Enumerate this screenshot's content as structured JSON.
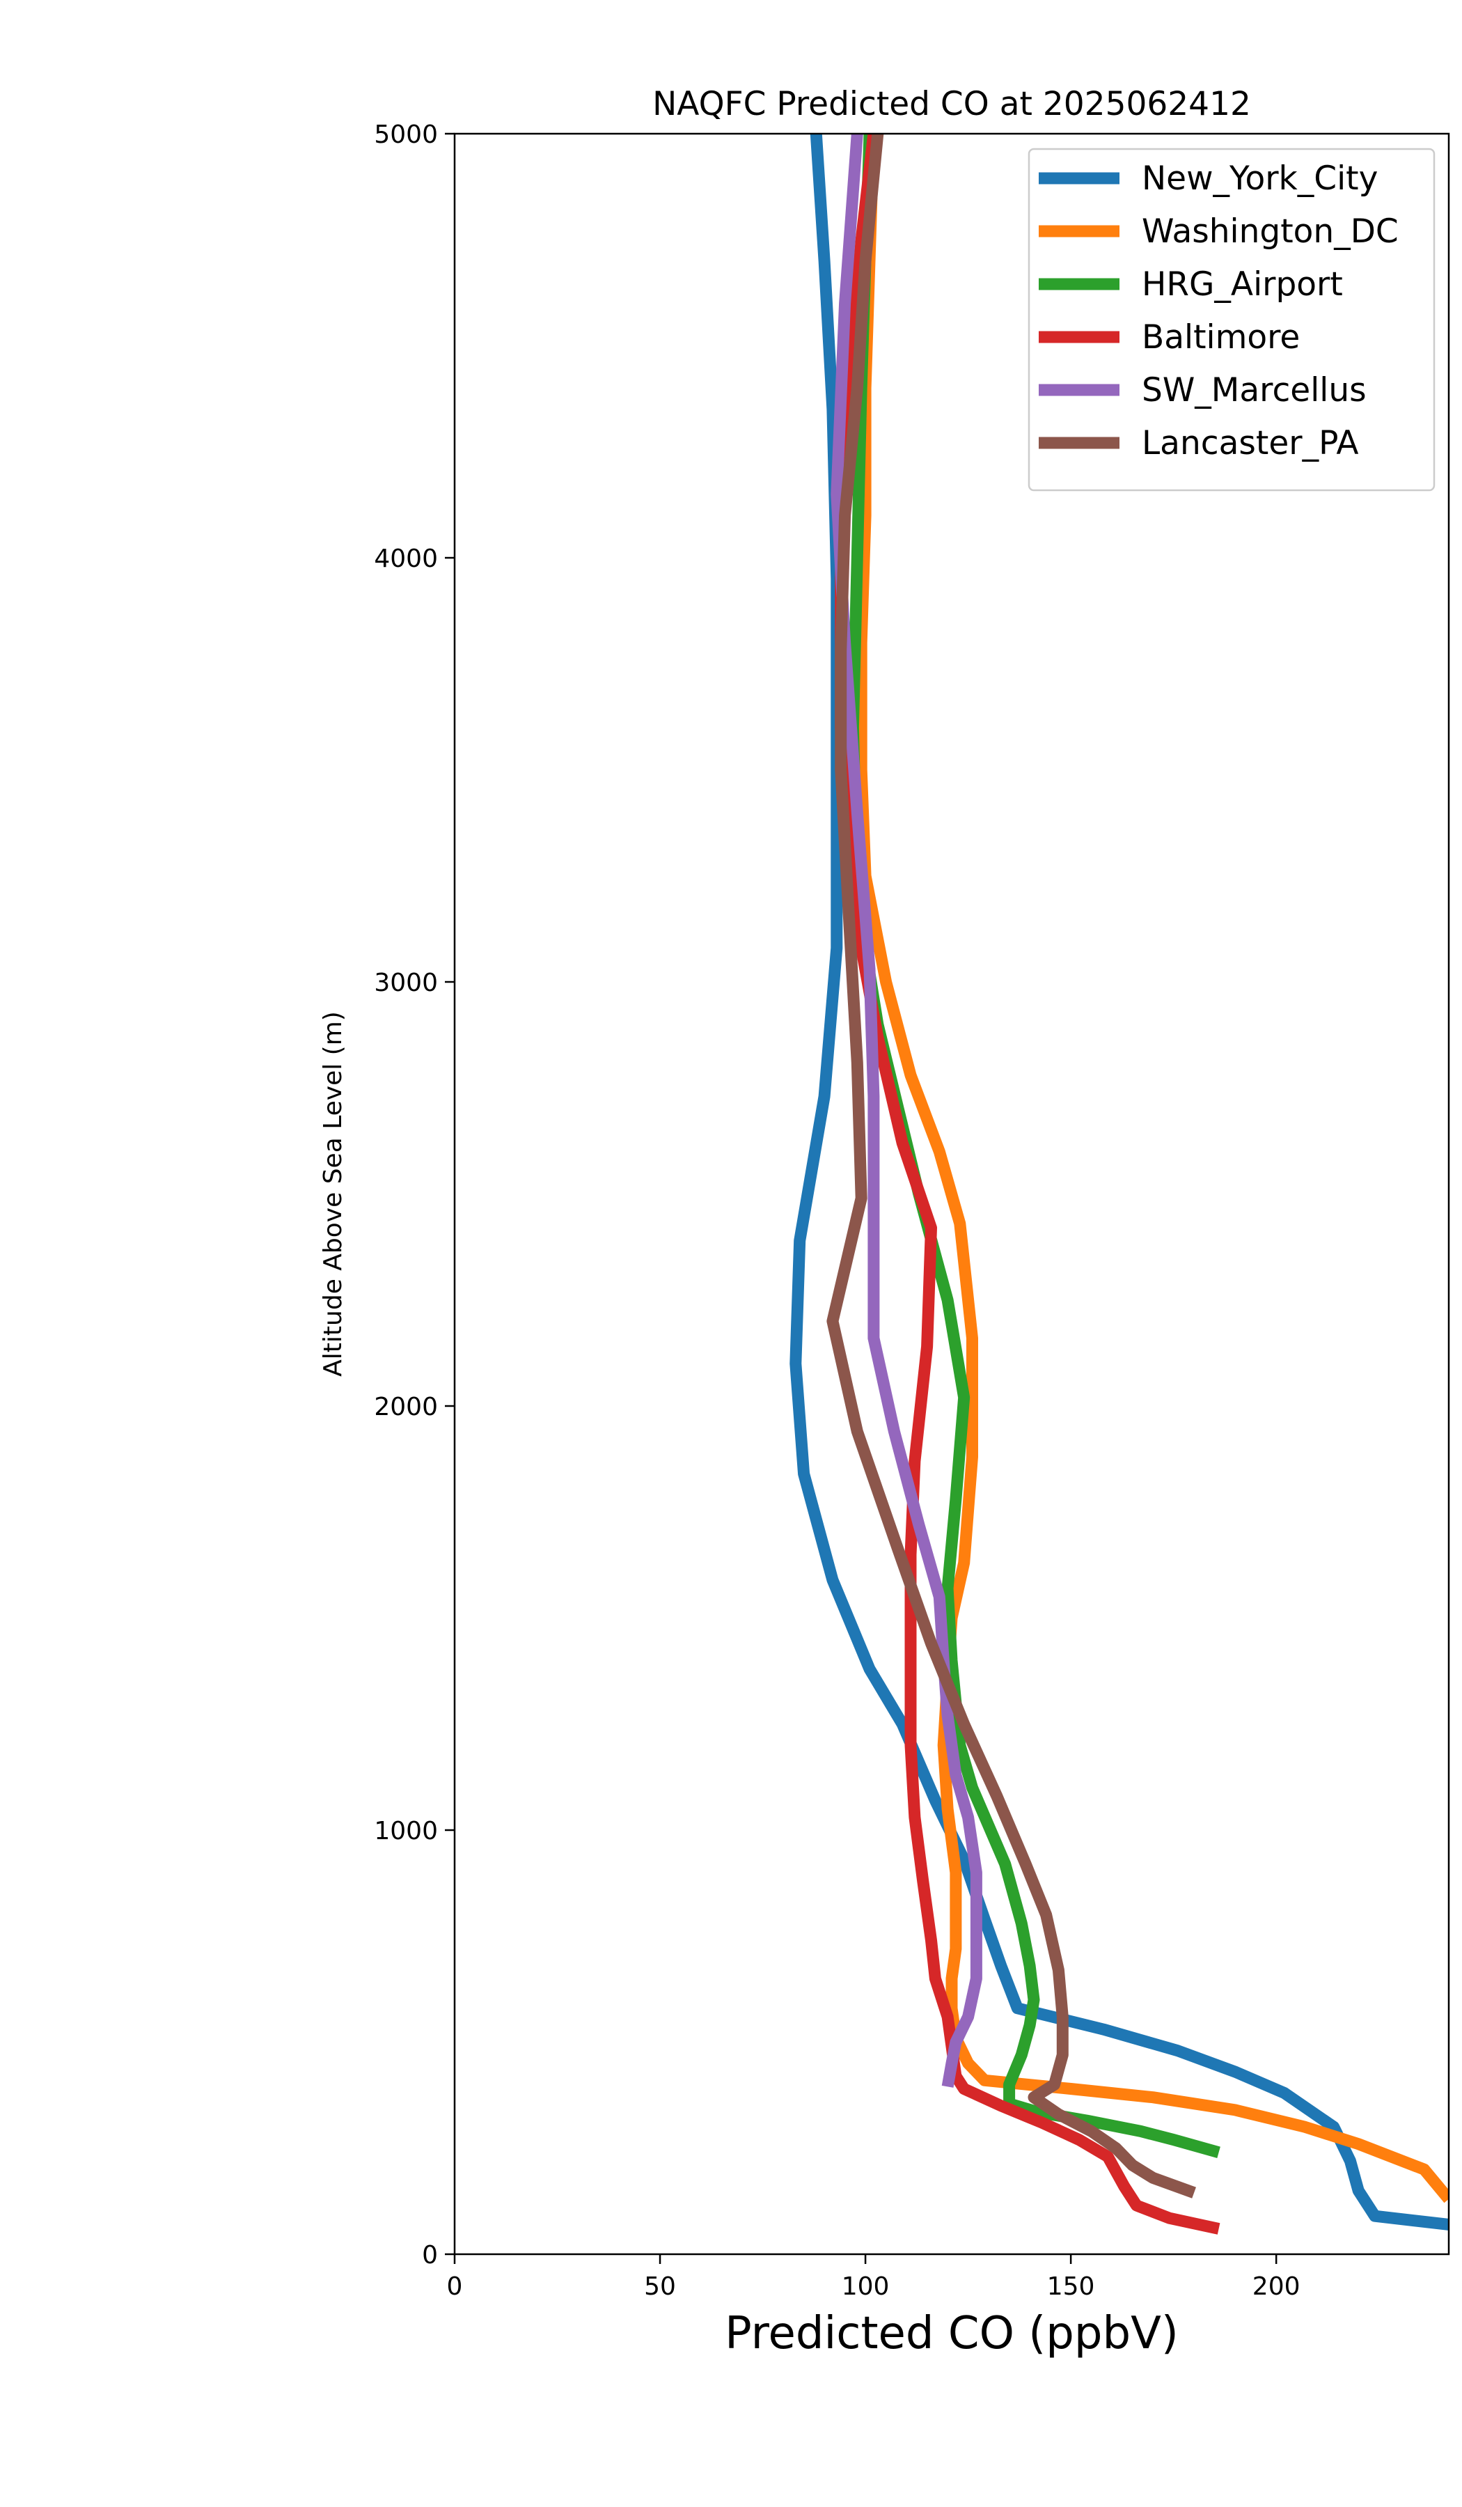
{
  "chart_data": {
    "type": "line",
    "title": "NAQFC Predicted CO at 2025062412",
    "xlabel": "Predicted CO (ppbV)",
    "ylabel": "Altitude Above Sea Level (m)",
    "xlim": [
      0,
      242
    ],
    "ylim": [
      0,
      5000
    ],
    "x_ticks": [
      0,
      50,
      100,
      150,
      200
    ],
    "y_ticks": [
      0,
      1000,
      2000,
      3000,
      4000,
      5000
    ],
    "legend_position": "top-right",
    "series": [
      {
        "name": "New_York_City",
        "color": "#1f77b4",
        "points": [
          [
            242,
            70
          ],
          [
            224,
            90
          ],
          [
            220,
            150
          ],
          [
            218,
            220
          ],
          [
            214,
            300
          ],
          [
            202,
            380
          ],
          [
            190,
            430
          ],
          [
            176,
            480
          ],
          [
            158,
            530
          ],
          [
            137,
            580
          ],
          [
            133,
            680
          ],
          [
            129,
            790
          ],
          [
            124,
            930
          ],
          [
            117,
            1070
          ],
          [
            109,
            1250
          ],
          [
            101,
            1380
          ],
          [
            92,
            1590
          ],
          [
            85,
            1840
          ],
          [
            83,
            2100
          ],
          [
            84,
            2390
          ],
          [
            90,
            2730
          ],
          [
            93,
            3080
          ],
          [
            93,
            3500
          ],
          [
            93,
            3950
          ],
          [
            92,
            4350
          ],
          [
            90,
            4700
          ],
          [
            88,
            5000
          ]
        ]
      },
      {
        "name": "Washington_DC",
        "color": "#ff7f0e",
        "points": [
          [
            242,
            130
          ],
          [
            236,
            200
          ],
          [
            220,
            260
          ],
          [
            207,
            300
          ],
          [
            190,
            340
          ],
          [
            170,
            370
          ],
          [
            150,
            390
          ],
          [
            129,
            410
          ],
          [
            125,
            450
          ],
          [
            122,
            510
          ],
          [
            121,
            580
          ],
          [
            121,
            650
          ],
          [
            122,
            720
          ],
          [
            122,
            800
          ],
          [
            122,
            900
          ],
          [
            120,
            1050
          ],
          [
            119,
            1200
          ],
          [
            120,
            1360
          ],
          [
            121,
            1500
          ],
          [
            124,
            1630
          ],
          [
            126,
            1880
          ],
          [
            126,
            2160
          ],
          [
            123,
            2430
          ],
          [
            118,
            2600
          ],
          [
            111,
            2780
          ],
          [
            105,
            3000
          ],
          [
            100,
            3250
          ],
          [
            99,
            3500
          ],
          [
            99,
            3800
          ],
          [
            100,
            4100
          ],
          [
            100,
            4400
          ],
          [
            101,
            4700
          ],
          [
            102,
            5000
          ]
        ]
      },
      {
        "name": "HRG_Airport",
        "color": "#2ca02c",
        "points": [
          [
            186,
            240
          ],
          [
            175,
            270
          ],
          [
            167,
            290
          ],
          [
            154,
            315
          ],
          [
            142,
            335
          ],
          [
            135,
            355
          ],
          [
            135,
            400
          ],
          [
            138,
            470
          ],
          [
            140,
            540
          ],
          [
            141,
            600
          ],
          [
            140,
            680
          ],
          [
            138,
            780
          ],
          [
            134,
            920
          ],
          [
            126,
            1100
          ],
          [
            123,
            1200
          ],
          [
            121,
            1400
          ],
          [
            120,
            1570
          ],
          [
            122,
            1780
          ],
          [
            124,
            2020
          ],
          [
            120,
            2250
          ],
          [
            113,
            2500
          ],
          [
            108,
            2700
          ],
          [
            103,
            2900
          ],
          [
            98,
            3200
          ],
          [
            97,
            3600
          ],
          [
            98,
            4000
          ],
          [
            99,
            4400
          ],
          [
            100,
            4700
          ],
          [
            101,
            5000
          ]
        ]
      },
      {
        "name": "Baltimore",
        "color": "#d62728",
        "points": [
          [
            186,
            60
          ],
          [
            174,
            85
          ],
          [
            166,
            115
          ],
          [
            163,
            160
          ],
          [
            159,
            230
          ],
          [
            152,
            270
          ],
          [
            143,
            310
          ],
          [
            133,
            350
          ],
          [
            124,
            390
          ],
          [
            122,
            420
          ],
          [
            121,
            490
          ],
          [
            120,
            560
          ],
          [
            117,
            650
          ],
          [
            116,
            740
          ],
          [
            114,
            880
          ],
          [
            112,
            1030
          ],
          [
            111,
            1200
          ],
          [
            111,
            1420
          ],
          [
            111,
            1650
          ],
          [
            112,
            1870
          ],
          [
            115,
            2140
          ],
          [
            116,
            2420
          ],
          [
            109,
            2620
          ],
          [
            103,
            2870
          ],
          [
            99,
            3080
          ],
          [
            96,
            3300
          ],
          [
            94,
            3600
          ],
          [
            94,
            4000
          ],
          [
            96,
            4400
          ],
          [
            99,
            4750
          ],
          [
            102,
            5000
          ]
        ]
      },
      {
        "name": "SW_Marcellus",
        "color": "#9467bd",
        "points": [
          [
            120,
            395
          ],
          [
            121,
            450
          ],
          [
            122,
            500
          ],
          [
            125,
            560
          ],
          [
            127,
            650
          ],
          [
            127,
            770
          ],
          [
            127,
            900
          ],
          [
            125,
            1030
          ],
          [
            122,
            1130
          ],
          [
            120,
            1270
          ],
          [
            119,
            1400
          ],
          [
            118,
            1550
          ],
          [
            113,
            1720
          ],
          [
            107,
            1940
          ],
          [
            102,
            2160
          ],
          [
            102,
            2430
          ],
          [
            102,
            2730
          ],
          [
            101,
            3030
          ],
          [
            98,
            3400
          ],
          [
            95,
            3800
          ],
          [
            93,
            4150
          ],
          [
            95,
            4600
          ],
          [
            98,
            5000
          ]
        ]
      },
      {
        "name": "Lancaster_PA",
        "color": "#8c564b",
        "points": [
          [
            180,
            145
          ],
          [
            170,
            180
          ],
          [
            165,
            210
          ],
          [
            161,
            250
          ],
          [
            155,
            290
          ],
          [
            147,
            330
          ],
          [
            141,
            370
          ],
          [
            146,
            400
          ],
          [
            148,
            470
          ],
          [
            148,
            560
          ],
          [
            147,
            670
          ],
          [
            144,
            800
          ],
          [
            139,
            920
          ],
          [
            132,
            1080
          ],
          [
            124,
            1250
          ],
          [
            116,
            1440
          ],
          [
            108,
            1660
          ],
          [
            98,
            1940
          ],
          [
            92,
            2200
          ],
          [
            99,
            2490
          ],
          [
            98,
            2810
          ],
          [
            96,
            3150
          ],
          [
            94,
            3500
          ],
          [
            94,
            3780
          ],
          [
            95,
            4100
          ],
          [
            98,
            4400
          ],
          [
            100,
            4700
          ],
          [
            103,
            5000
          ]
        ]
      }
    ]
  }
}
